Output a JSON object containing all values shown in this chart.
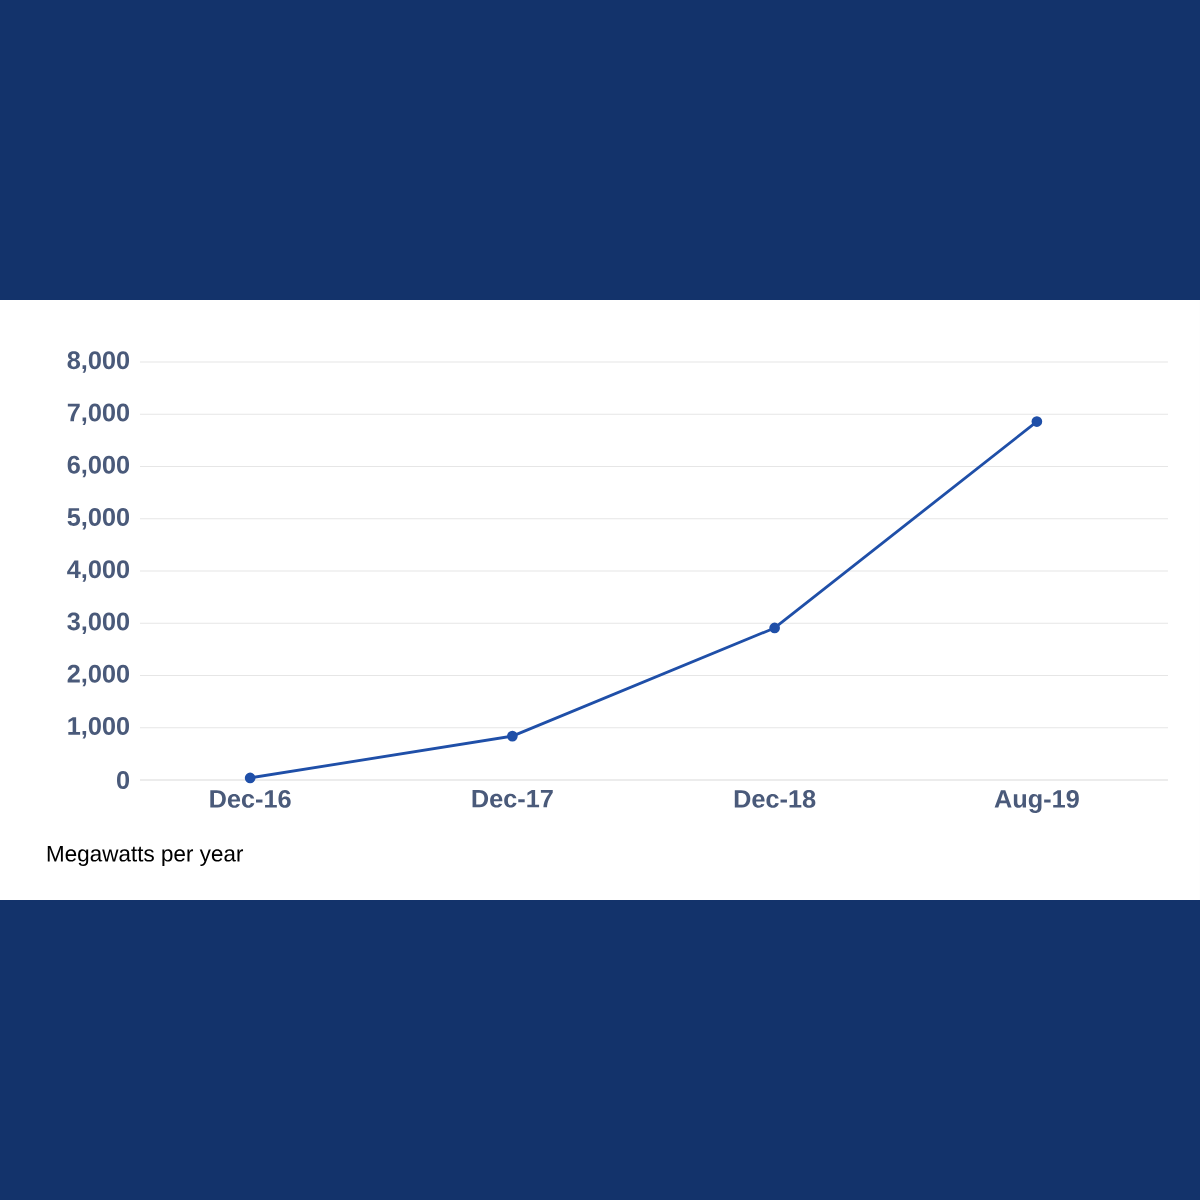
{
  "chart_data": {
    "type": "line",
    "categories": [
      "Dec-16",
      "Dec-17",
      "Dec-18",
      "Aug-19"
    ],
    "series": [
      {
        "color": "#1f4fa8",
        "values": [
          40,
          840,
          2910,
          6860
        ]
      }
    ],
    "ylim": [
      0,
      8000
    ],
    "yticks": [
      {
        "value": 0,
        "label": "0"
      },
      {
        "value": 1000,
        "label": "1,000"
      },
      {
        "value": 2000,
        "label": "2,000"
      },
      {
        "value": 3000,
        "label": "3,000"
      },
      {
        "value": 4000,
        "label": "4,000"
      },
      {
        "value": 5000,
        "label": "5,000"
      },
      {
        "value": 6000,
        "label": "6,000"
      },
      {
        "value": 7000,
        "label": "7,000"
      },
      {
        "value": 8000,
        "label": "8,000"
      }
    ],
    "grid": "y",
    "marker": "circle",
    "line_style": "solid",
    "annotations": [
      "Megawatts per year"
    ]
  }
}
